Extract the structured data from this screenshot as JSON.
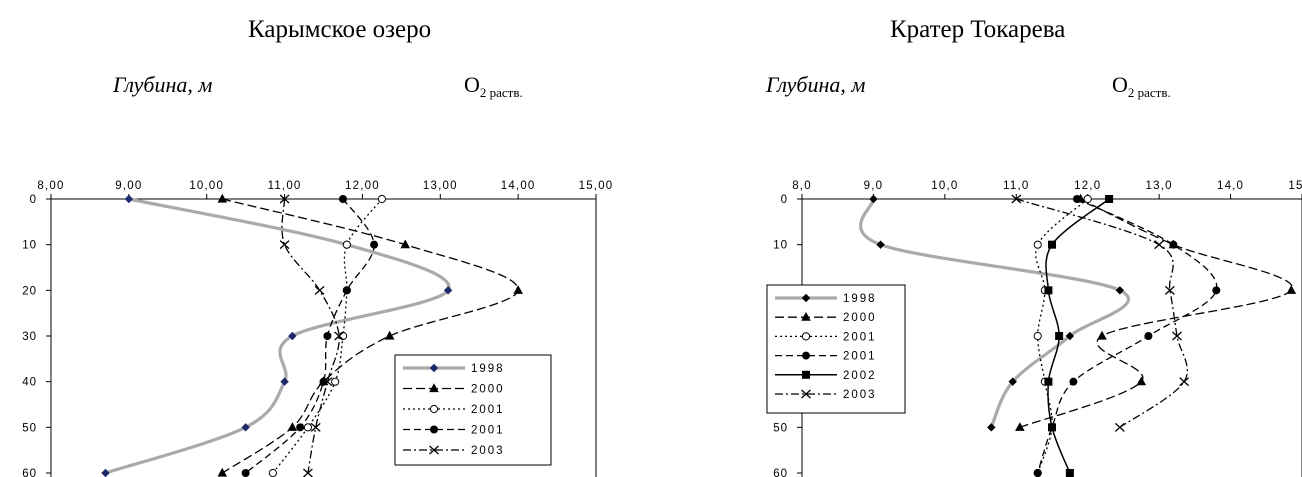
{
  "panels": [
    {
      "title": "Карымское озеро",
      "depth_label": "Глубина, м",
      "param_main": "O",
      "param_sub": "2 раств."
    },
    {
      "title": "Кратер Токарева",
      "depth_label": "Глубина, м",
      "param_main": "O",
      "param_sub": "2 раств."
    }
  ],
  "chart_data": [
    {
      "type": "line",
      "title": "Карымское озеро",
      "xlabel": "O2 раств.",
      "ylabel": "Глубина, м",
      "xlim": [
        8,
        15
      ],
      "ylim": [
        0,
        60
      ],
      "y_inverted": true,
      "x_ticks": [
        "8,00",
        "9,00",
        "10,00",
        "11,00",
        "12,00",
        "13,00",
        "14,00",
        "15,00"
      ],
      "y_ticks": [
        "0",
        "10",
        "20",
        "30",
        "40",
        "50",
        "60"
      ],
      "legend_position": "bottom-right",
      "series": [
        {
          "name": "1998",
          "color": "#aaaaaa",
          "line": "solid-thick",
          "marker": "diamond",
          "marker_color": "#1f2a6b",
          "points": [
            [
              9.0,
              0
            ],
            [
              11.8,
              10
            ],
            [
              13.1,
              20
            ],
            [
              11.1,
              30
            ],
            [
              11.0,
              40
            ],
            [
              10.5,
              50
            ],
            [
              8.7,
              60
            ]
          ]
        },
        {
          "name": "2000",
          "color": "#000000",
          "line": "long-dash",
          "marker": "triangle",
          "marker_color": "#000000",
          "points": [
            [
              10.2,
              0
            ],
            [
              12.55,
              10
            ],
            [
              14.0,
              20
            ],
            [
              12.35,
              30
            ],
            [
              11.5,
              40
            ],
            [
              11.1,
              50
            ],
            [
              10.2,
              60
            ]
          ]
        },
        {
          "name": "2001",
          "color": "#000000",
          "line": "dot",
          "marker": "circle-open",
          "marker_color": "#000000",
          "points": [
            [
              12.25,
              0
            ],
            [
              11.8,
              10
            ],
            [
              11.8,
              20
            ],
            [
              11.75,
              30
            ],
            [
              11.65,
              40
            ],
            [
              11.3,
              50
            ],
            [
              10.85,
              60
            ]
          ]
        },
        {
          "name": "2001",
          "color": "#000000",
          "line": "dash",
          "marker": "circle-filled",
          "marker_color": "#000000",
          "points": [
            [
              11.75,
              0
            ],
            [
              12.15,
              10
            ],
            [
              11.8,
              20
            ],
            [
              11.55,
              30
            ],
            [
              11.5,
              40
            ],
            [
              11.2,
              50
            ],
            [
              10.5,
              60
            ]
          ]
        },
        {
          "name": "2003",
          "color": "#000000",
          "line": "dash-dot",
          "marker": "x",
          "marker_color": "#000000",
          "points": [
            [
              11.0,
              0
            ],
            [
              11.0,
              10
            ],
            [
              11.45,
              20
            ],
            [
              11.7,
              30
            ],
            [
              11.55,
              40
            ],
            [
              11.4,
              50
            ],
            [
              11.3,
              60
            ]
          ]
        }
      ]
    },
    {
      "type": "line",
      "title": "Кратер Токарева",
      "xlabel": "O2 раств.",
      "ylabel": "Глубина, м",
      "xlim": [
        8,
        15
      ],
      "ylim": [
        0,
        60
      ],
      "y_inverted": true,
      "x_ticks": [
        "8,0",
        "9,0",
        "10,0",
        "11,0",
        "12,0",
        "13,0",
        "14,0",
        "15,0"
      ],
      "y_ticks": [
        "0",
        "10",
        "20",
        "30",
        "40",
        "50",
        "60"
      ],
      "legend_position": "middle-left",
      "series": [
        {
          "name": "1998",
          "color": "#aaaaaa",
          "line": "solid-thick",
          "marker": "diamond",
          "marker_color": "#000000",
          "points": [
            [
              9.0,
              0
            ],
            [
              9.1,
              10
            ],
            [
              12.45,
              20
            ],
            [
              11.75,
              30
            ],
            [
              10.95,
              40
            ],
            [
              10.65,
              50
            ]
          ]
        },
        {
          "name": "2000",
          "color": "#000000",
          "line": "long-dash",
          "marker": "triangle",
          "marker_color": "#000000",
          "points": [
            [
              11.9,
              0
            ],
            [
              13.2,
              10
            ],
            [
              14.85,
              20
            ],
            [
              12.2,
              30
            ],
            [
              12.75,
              40
            ],
            [
              11.05,
              50
            ]
          ]
        },
        {
          "name": "2001",
          "color": "#000000",
          "line": "dot",
          "marker": "circle-open",
          "marker_color": "#000000",
          "points": [
            [
              12.0,
              0
            ],
            [
              11.3,
              10
            ],
            [
              11.4,
              20
            ],
            [
              11.3,
              30
            ],
            [
              11.4,
              40
            ],
            [
              11.5,
              50
            ],
            [
              11.3,
              60
            ]
          ]
        },
        {
          "name": "2001",
          "color": "#000000",
          "line": "dash",
          "marker": "circle-filled",
          "marker_color": "#000000",
          "points": [
            [
              11.85,
              0
            ],
            [
              13.2,
              10
            ],
            [
              13.8,
              20
            ],
            [
              12.85,
              30
            ],
            [
              11.8,
              40
            ],
            [
              11.5,
              50
            ],
            [
              11.3,
              60
            ]
          ]
        },
        {
          "name": "2002",
          "color": "#000000",
          "line": "solid",
          "marker": "square",
          "marker_color": "#000000",
          "points": [
            [
              12.3,
              0
            ],
            [
              11.5,
              10
            ],
            [
              11.45,
              20
            ],
            [
              11.6,
              30
            ],
            [
              11.45,
              40
            ],
            [
              11.5,
              50
            ],
            [
              11.75,
              60
            ]
          ]
        },
        {
          "name": "2003",
          "color": "#000000",
          "line": "dash-dot",
          "marker": "x",
          "marker_color": "#000000",
          "points": [
            [
              11.0,
              0
            ],
            [
              13.0,
              10
            ],
            [
              13.15,
              20
            ],
            [
              13.25,
              30
            ],
            [
              13.35,
              40
            ],
            [
              12.45,
              50
            ]
          ]
        }
      ]
    }
  ]
}
